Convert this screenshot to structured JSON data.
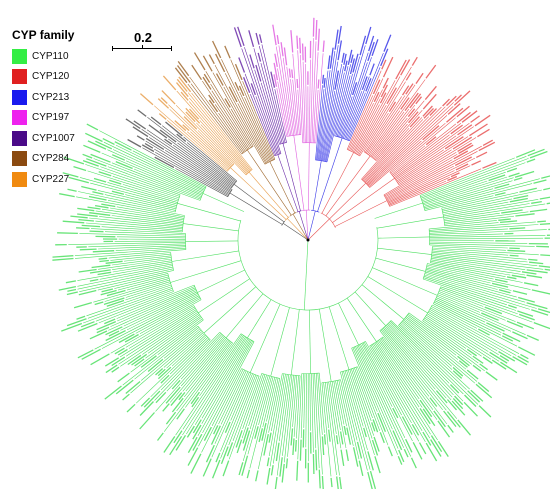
{
  "legend": {
    "title": "CYP family",
    "families": [
      {
        "label": "CYP110",
        "color": "#33ee44"
      },
      {
        "label": "CYP120",
        "color": "#e02020"
      },
      {
        "label": "CYP213",
        "color": "#1a1aee"
      },
      {
        "label": "CYP197",
        "color": "#ee22ee"
      },
      {
        "label": "CYP1007",
        "color": "#4a0a88"
      },
      {
        "label": "CYP284",
        "color": "#8b4a10"
      },
      {
        "label": "CYP227",
        "color": "#f08a10"
      }
    ]
  },
  "scale_bar": {
    "label": "0.2",
    "value": 0.2
  },
  "tree": {
    "clades": [
      {
        "family": "CYP110",
        "color": "#4ddf60",
        "start_deg": 152,
        "end_deg": 382,
        "leaves": 330
      },
      {
        "family": "CYP120",
        "color": "#e85555",
        "start_deg": 22,
        "end_deg": 67,
        "leaves": 60
      },
      {
        "family": "CYP213",
        "color": "#3a3ae8",
        "start_deg": 67,
        "end_deg": 85,
        "leaves": 26
      },
      {
        "family": "CYP197",
        "color": "#e060e0",
        "start_deg": 85,
        "end_deg": 102,
        "leaves": 22
      },
      {
        "family": "CYP1007",
        "color": "#6a2aa8",
        "start_deg": 102,
        "end_deg": 112,
        "leaves": 12
      },
      {
        "family": "CYP284",
        "color": "#a06a30",
        "start_deg": 112,
        "end_deg": 128,
        "leaves": 20
      },
      {
        "family": "CYP227",
        "color": "#e8a050",
        "start_deg": 128,
        "end_deg": 140,
        "leaves": 16
      },
      {
        "family": "unassigned",
        "color": "#555555",
        "start_deg": 140,
        "end_deg": 152,
        "leaves": 16
      }
    ]
  }
}
